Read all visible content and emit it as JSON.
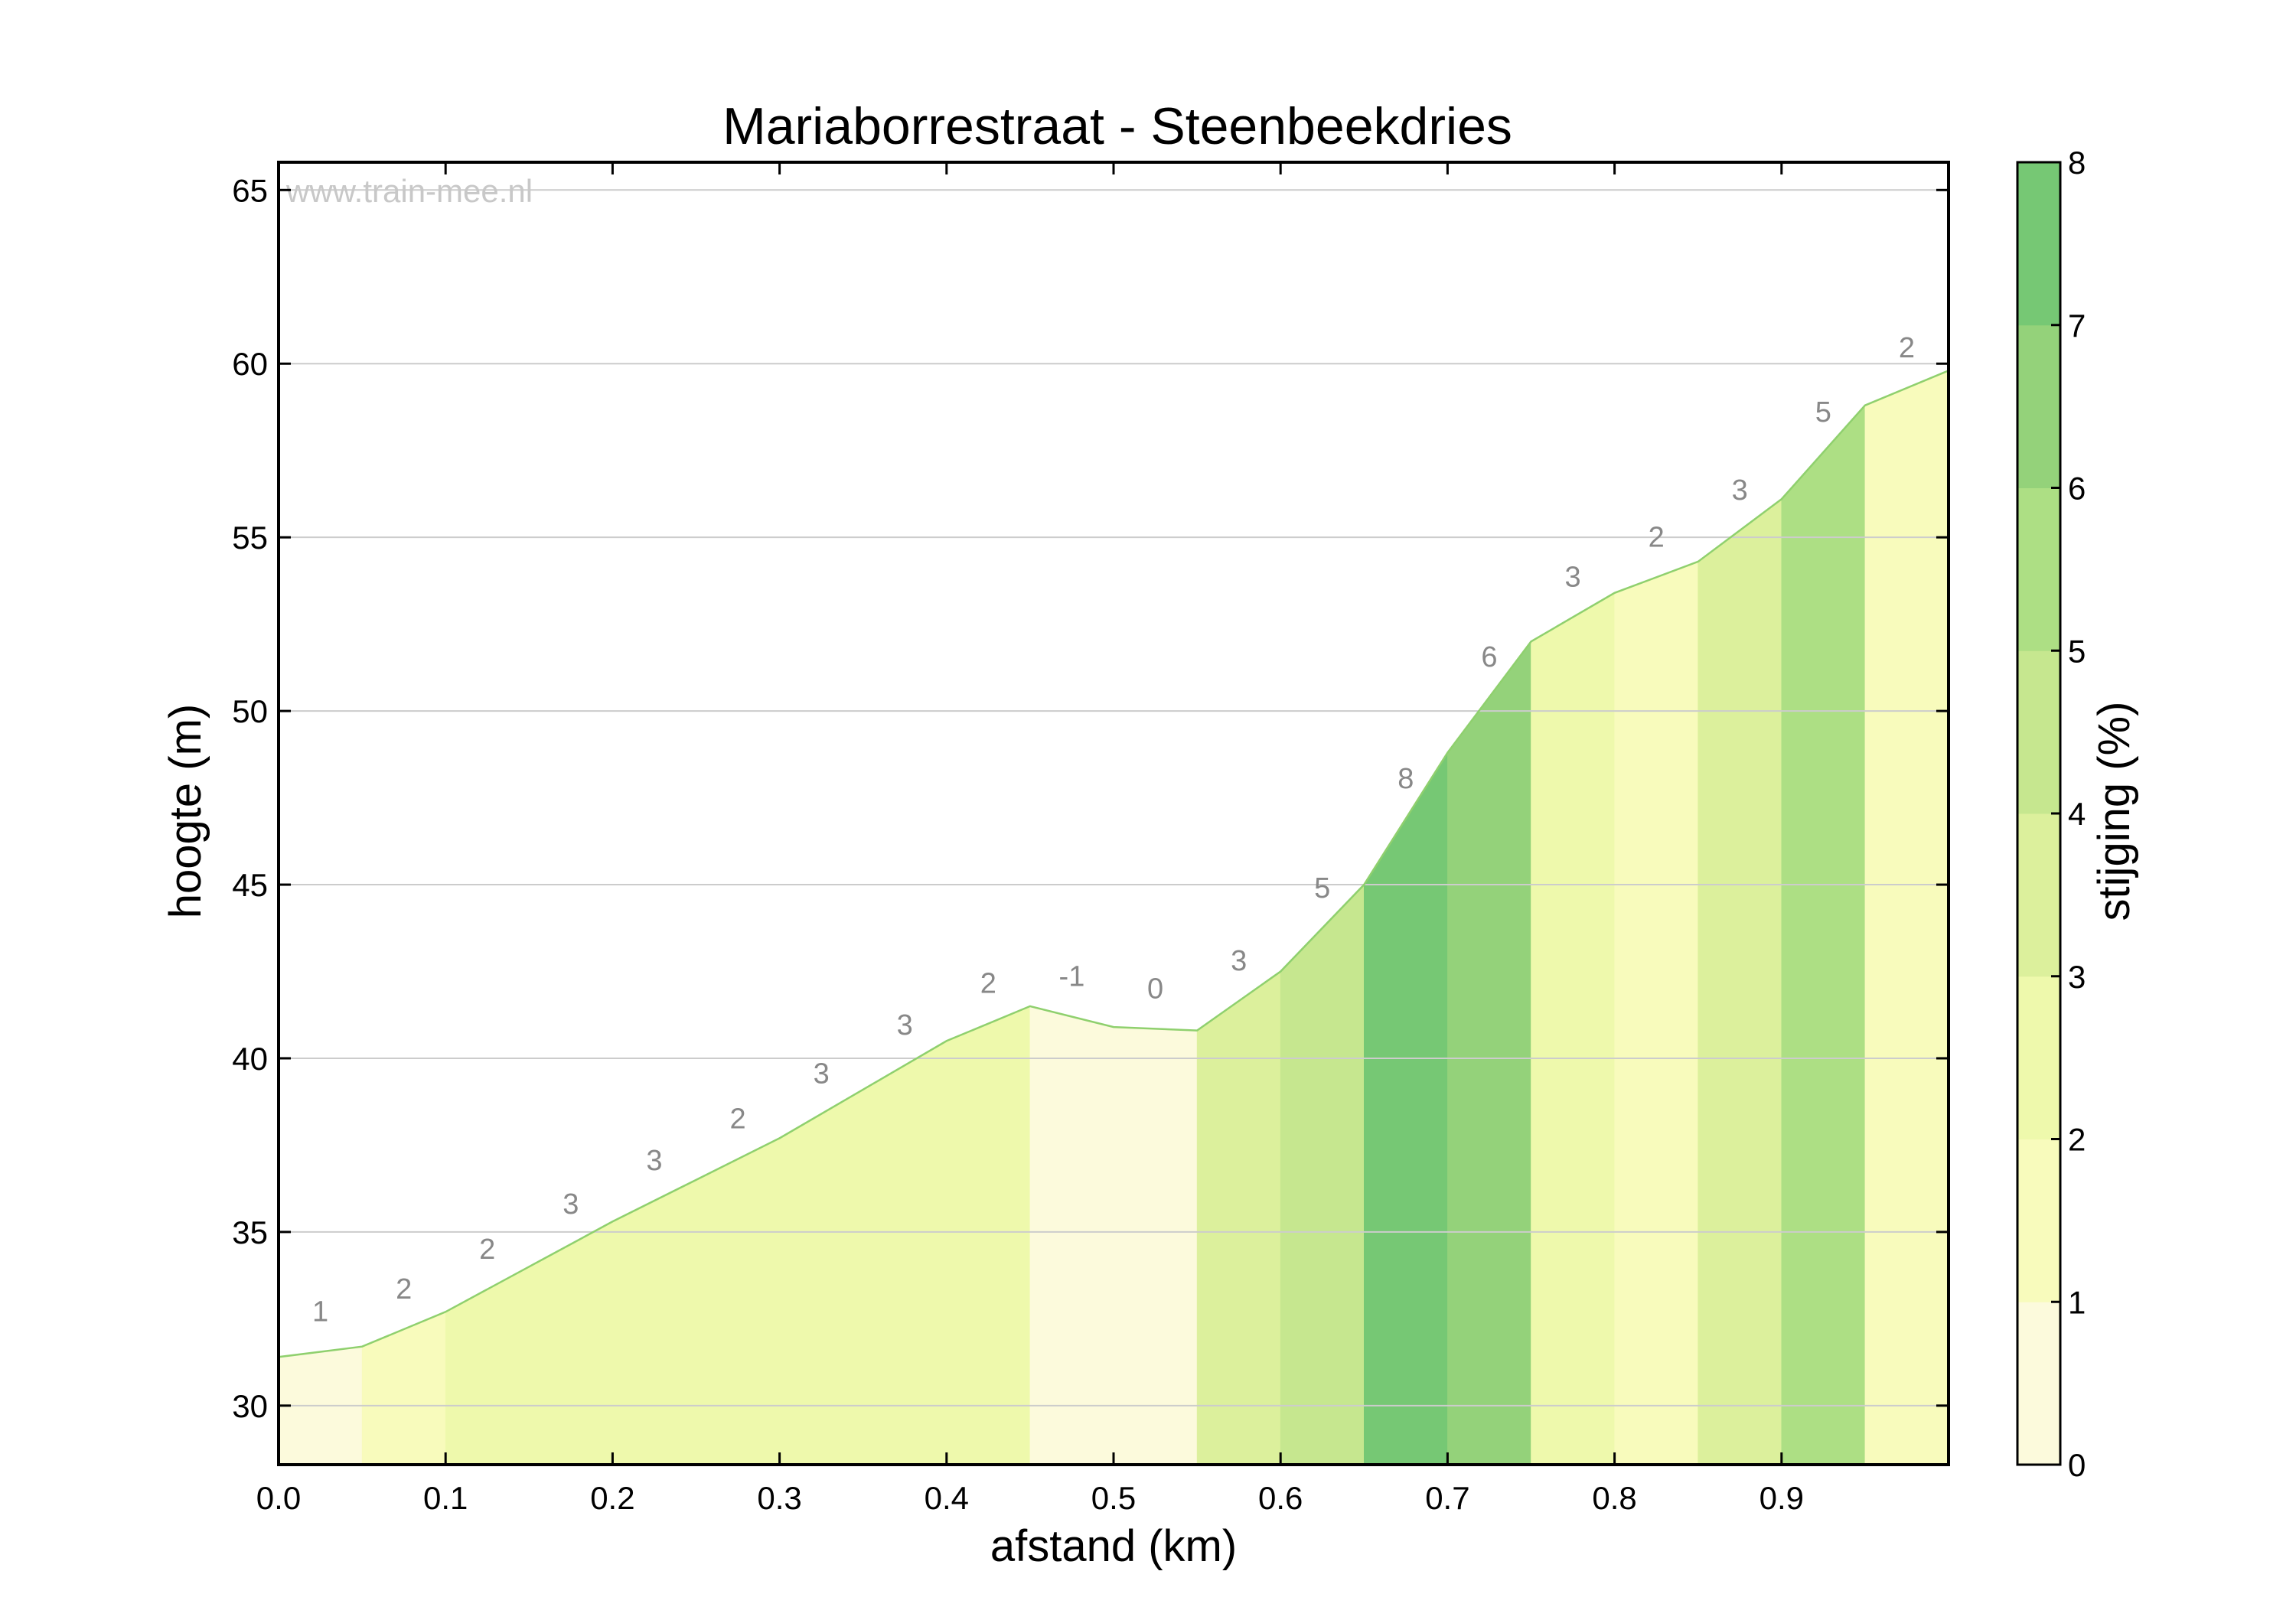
{
  "chart_data": {
    "type": "area",
    "title": "Mariaborrestraat - Steenbeekdries",
    "xlabel": "afstand (km)",
    "ylabel": "hoogte (m)",
    "watermark": "www.train-mee.nl",
    "xlim": [
      0.0,
      1.0
    ],
    "ylim": [
      28.3,
      65.8
    ],
    "xticks": [
      {
        "value": 0.0,
        "label": "0.0"
      },
      {
        "value": 0.1,
        "label": "0.1"
      },
      {
        "value": 0.2,
        "label": "0.2"
      },
      {
        "value": 0.3,
        "label": "0.3"
      },
      {
        "value": 0.4,
        "label": "0.4"
      },
      {
        "value": 0.5,
        "label": "0.5"
      },
      {
        "value": 0.6,
        "label": "0.6"
      },
      {
        "value": 0.7,
        "label": "0.7"
      },
      {
        "value": 0.8,
        "label": "0.8"
      },
      {
        "value": 0.9,
        "label": "0.9"
      }
    ],
    "yticks": [
      {
        "value": 30,
        "label": "30"
      },
      {
        "value": 35,
        "label": "35"
      },
      {
        "value": 40,
        "label": "40"
      },
      {
        "value": 45,
        "label": "45"
      },
      {
        "value": 50,
        "label": "50"
      },
      {
        "value": 55,
        "label": "55"
      },
      {
        "value": 60,
        "label": "60"
      },
      {
        "value": 65,
        "label": "65"
      }
    ],
    "grid": "horizontal",
    "profile": [
      {
        "x": 0.0,
        "y": 31.4
      },
      {
        "x": 0.05,
        "y": 31.7
      },
      {
        "x": 0.1,
        "y": 32.7
      },
      {
        "x": 0.15,
        "y": 34.0
      },
      {
        "x": 0.2,
        "y": 35.3
      },
      {
        "x": 0.25,
        "y": 36.5
      },
      {
        "x": 0.3,
        "y": 37.7
      },
      {
        "x": 0.35,
        "y": 39.1
      },
      {
        "x": 0.4,
        "y": 40.5
      },
      {
        "x": 0.45,
        "y": 41.5
      },
      {
        "x": 0.5,
        "y": 40.9
      },
      {
        "x": 0.55,
        "y": 40.8
      },
      {
        "x": 0.6,
        "y": 42.5
      },
      {
        "x": 0.65,
        "y": 45.0
      },
      {
        "x": 0.7,
        "y": 48.8
      },
      {
        "x": 0.75,
        "y": 52.0
      },
      {
        "x": 0.8,
        "y": 53.4
      },
      {
        "x": 0.85,
        "y": 54.3
      },
      {
        "x": 0.9,
        "y": 56.1
      },
      {
        "x": 0.95,
        "y": 58.8
      },
      {
        "x": 1.0,
        "y": 59.8
      }
    ],
    "segments": [
      {
        "x0": 0.0,
        "x1": 0.05,
        "gradient": 0.7,
        "label": "1"
      },
      {
        "x0": 0.05,
        "x1": 0.1,
        "gradient": 1.5,
        "label": "2"
      },
      {
        "x0": 0.1,
        "x1": 0.15,
        "gradient": 2.3,
        "label": "2"
      },
      {
        "x0": 0.15,
        "x1": 0.2,
        "gradient": 2.4,
        "label": "3"
      },
      {
        "x0": 0.2,
        "x1": 0.25,
        "gradient": 2.4,
        "label": "3"
      },
      {
        "x0": 0.25,
        "x1": 0.3,
        "gradient": 2.4,
        "label": "2"
      },
      {
        "x0": 0.3,
        "x1": 0.35,
        "gradient": 2.4,
        "label": "3"
      },
      {
        "x0": 0.35,
        "x1": 0.4,
        "gradient": 2.4,
        "label": "3"
      },
      {
        "x0": 0.4,
        "x1": 0.45,
        "gradient": 2.3,
        "label": "2"
      },
      {
        "x0": 0.45,
        "x1": 0.5,
        "gradient": 0.5,
        "label": "-1"
      },
      {
        "x0": 0.5,
        "x1": 0.55,
        "gradient": 0.5,
        "label": "0"
      },
      {
        "x0": 0.55,
        "x1": 0.6,
        "gradient": 3.5,
        "label": "3"
      },
      {
        "x0": 0.6,
        "x1": 0.65,
        "gradient": 4.5,
        "label": "5"
      },
      {
        "x0": 0.65,
        "x1": 0.7,
        "gradient": 7.5,
        "label": "8"
      },
      {
        "x0": 0.7,
        "x1": 0.75,
        "gradient": 6.5,
        "label": "6"
      },
      {
        "x0": 0.75,
        "x1": 0.8,
        "gradient": 2.5,
        "label": "3"
      },
      {
        "x0": 0.8,
        "x1": 0.85,
        "gradient": 1.5,
        "label": "2"
      },
      {
        "x0": 0.85,
        "x1": 0.9,
        "gradient": 3.5,
        "label": "3"
      },
      {
        "x0": 0.9,
        "x1": 0.95,
        "gradient": 5.5,
        "label": "5"
      },
      {
        "x0": 0.95,
        "x1": 1.0,
        "gradient": 1.5,
        "label": "2"
      }
    ],
    "colorbar": {
      "label": "stijging (%)",
      "range": [
        0,
        8
      ],
      "ticks": [
        {
          "value": 0,
          "label": "0"
        },
        {
          "value": 1,
          "label": "1"
        },
        {
          "value": 2,
          "label": "2"
        },
        {
          "value": 3,
          "label": "3"
        },
        {
          "value": 4,
          "label": "4"
        },
        {
          "value": 5,
          "label": "5"
        },
        {
          "value": 6,
          "label": "6"
        },
        {
          "value": 7,
          "label": "7"
        },
        {
          "value": 8,
          "label": "8"
        }
      ],
      "colors": [
        "#fcfadc",
        "#f8fbbc",
        "#eef9ac",
        "#dcf09c",
        "#c6e78f",
        "#addf84",
        "#94d27a",
        "#76c874"
      ]
    },
    "line_color": "#8fd06e"
  }
}
